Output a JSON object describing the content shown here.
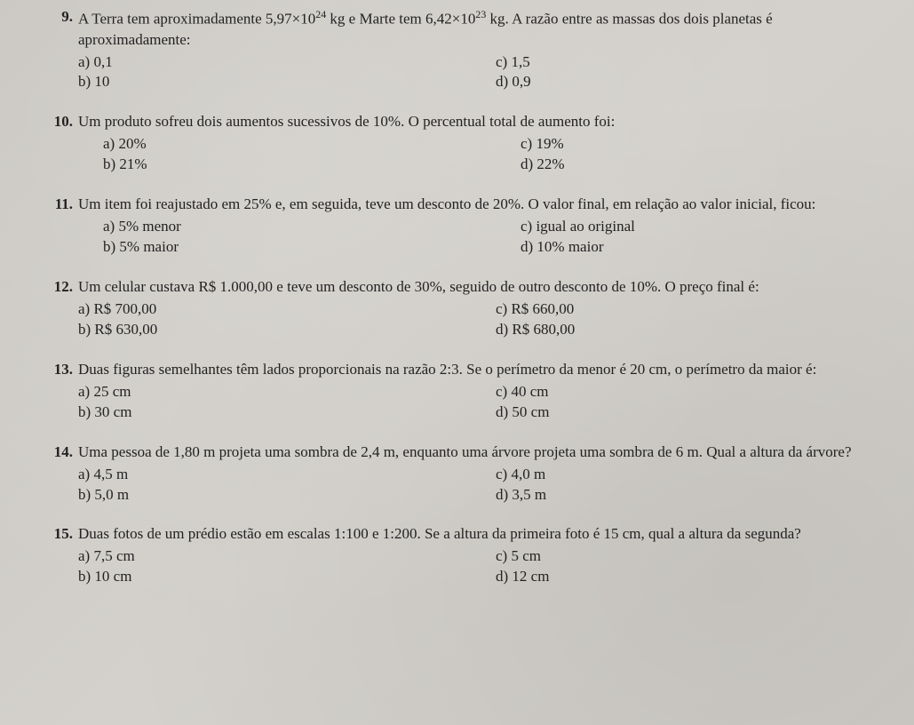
{
  "questions": [
    {
      "num": "9.",
      "stem_html": "A Terra tem aproximadamente 5,97×10<sup>24</sup> kg e Marte tem 6,42×10<sup>23</sup> kg. A razão entre as massas dos dois planetas é aproximadamente:",
      "indent": false,
      "left": [
        "a) 0,1",
        "b) 10"
      ],
      "right": [
        "c) 1,5",
        "d) 0,9"
      ]
    },
    {
      "num": "10.",
      "stem_html": "Um produto sofreu dois aumentos sucessivos de 10%. O percentual total de aumento foi:",
      "indent": true,
      "left": [
        "a) 20%",
        "b) 21%"
      ],
      "right": [
        "c) 19%",
        "d) 22%"
      ]
    },
    {
      "num": "11.",
      "stem_html": "Um item foi reajustado em 25% e, em seguida, teve um desconto de 20%. O valor final, em relação ao valor inicial, ficou:",
      "indent": true,
      "left": [
        "a) 5% menor",
        "b) 5% maior"
      ],
      "right": [
        "c) igual ao original",
        "d) 10% maior"
      ]
    },
    {
      "num": "12.",
      "stem_html": "Um celular custava R$ 1.000,00 e teve um desconto de 30%, seguido de outro desconto de 10%. O preço final é:",
      "indent": false,
      "left": [
        "a) R$ 700,00",
        "b) R$ 630,00"
      ],
      "right": [
        "c) R$ 660,00",
        "d) R$ 680,00"
      ]
    },
    {
      "num": "13.",
      "stem_html": "Duas figuras semelhantes têm lados proporcionais na razão 2:3. Se o perímetro da menor é 20 cm, o perímetro da maior é:",
      "indent": false,
      "left": [
        "a) 25 cm",
        "b) 30 cm"
      ],
      "right": [
        "c) 40 cm",
        "d) 50 cm"
      ]
    },
    {
      "num": "14.",
      "stem_html": "Uma pessoa de 1,80 m projeta uma sombra de 2,4 m, enquanto uma árvore projeta uma sombra de 6 m. Qual a altura da árvore?",
      "indent": false,
      "left": [
        "a) 4,5 m",
        "b) 5,0 m"
      ],
      "right": [
        "c) 4,0 m",
        "d) 3,5 m"
      ]
    },
    {
      "num": "15.",
      "stem_html": "Duas fotos de um prédio estão em escalas 1:100 e 1:200. Se a altura da primeira foto é 15 cm, qual a altura da segunda?",
      "indent": false,
      "left": [
        "a) 7,5 cm",
        "b) 10 cm"
      ],
      "right": [
        "c) 5 cm",
        "d) 12 cm"
      ]
    }
  ]
}
